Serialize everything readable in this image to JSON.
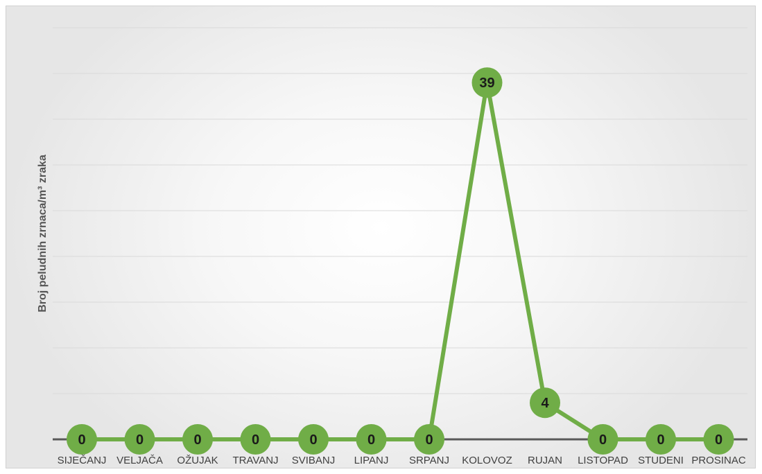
{
  "chart_data": {
    "type": "line",
    "categories": [
      "SIJEČANJ",
      "VELJAČA",
      "OŽUJAK",
      "TRAVANJ",
      "SVIBANJ",
      "LIPANJ",
      "SRPANJ",
      "KOLOVOZ",
      "RUJAN",
      "LISTOPAD",
      "STUDENI",
      "PROSINAC"
    ],
    "values": [
      0,
      0,
      0,
      0,
      0,
      0,
      0,
      39,
      4,
      0,
      0,
      0
    ],
    "ylabel": "Broj peludnih zrnaca/m³ zraka",
    "ylim": [
      0,
      45
    ],
    "grid": true,
    "colors": {
      "line": "#70ad47",
      "marker": "#70ad47",
      "label_text": "#1a1a1a",
      "grid": "#d9d9d9",
      "axis": "#595959"
    }
  }
}
